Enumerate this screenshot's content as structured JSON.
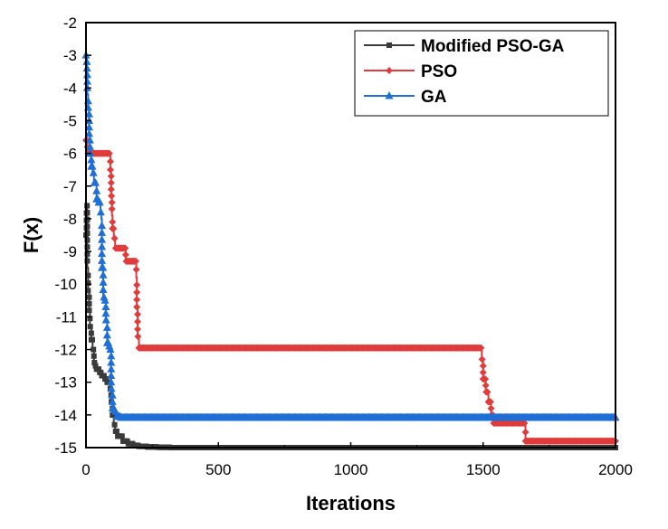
{
  "chart_data": {
    "type": "line",
    "xlabel": "Iterations",
    "ylabel": "F(x)",
    "xlim": [
      0,
      2000
    ],
    "ylim": [
      -15,
      -2
    ],
    "xticks": [
      "0",
      "500",
      "1000",
      "1500",
      "2000"
    ],
    "yticks": [
      "-2",
      "-3",
      "-4",
      "-5",
      "-6",
      "-7",
      "-8",
      "-9",
      "-10",
      "-11",
      "-12",
      "-13",
      "-14",
      "-15"
    ],
    "legend_position": "top-right",
    "series": [
      {
        "name": "Modified PSO-GA",
        "color": "#3a3a3a",
        "marker": "square",
        "x": [
          0,
          2,
          5,
          8,
          12,
          15,
          20,
          25,
          30,
          35,
          40,
          50,
          60,
          70,
          80,
          90,
          95,
          100,
          105,
          110,
          120,
          140,
          160,
          180,
          200,
          230,
          270,
          320,
          400,
          600,
          1000,
          1500,
          2000
        ],
        "y": [
          -8.5,
          -7.6,
          -9.5,
          -10.2,
          -10.8,
          -11.3,
          -11.7,
          -12.0,
          -12.4,
          -12.5,
          -12.6,
          -12.7,
          -12.8,
          -12.9,
          -13.0,
          -13.2,
          -13.6,
          -14.0,
          -14.3,
          -14.5,
          -14.65,
          -14.8,
          -14.88,
          -14.93,
          -14.96,
          -14.98,
          -14.99,
          -15.0,
          -15.0,
          -15.0,
          -15.0,
          -15.0,
          -15.0
        ]
      },
      {
        "name": "PSO",
        "color": "#e03c3c",
        "marker": "diamond",
        "x": [
          0,
          5,
          90,
          92,
          95,
          98,
          100,
          105,
          110,
          140,
          150,
          180,
          190,
          192,
          195,
          200,
          300,
          500,
          800,
          1000,
          1200,
          1400,
          1490,
          1495,
          1500,
          1510,
          1520,
          1530,
          1540,
          1600,
          1655,
          1660,
          1700,
          1800,
          2000
        ],
        "y": [
          -5.6,
          -6.0,
          -6.0,
          -6.5,
          -7.3,
          -7.9,
          -8.3,
          -8.6,
          -8.9,
          -8.9,
          -9.3,
          -9.3,
          -9.8,
          -10.7,
          -11.6,
          -11.95,
          -11.95,
          -11.95,
          -11.95,
          -11.95,
          -11.95,
          -11.95,
          -11.95,
          -12.3,
          -12.9,
          -13.3,
          -13.6,
          -14.0,
          -14.25,
          -14.25,
          -14.25,
          -14.8,
          -14.8,
          -14.8,
          -14.8
        ]
      },
      {
        "name": "GA",
        "color": "#1f6fd6",
        "marker": "triangle",
        "x": [
          0,
          3,
          5,
          8,
          12,
          15,
          20,
          25,
          30,
          40,
          45,
          55,
          58,
          60,
          65,
          70,
          75,
          80,
          85,
          90,
          95,
          100,
          105,
          110,
          115,
          130,
          200,
          500,
          1000,
          1500,
          2000
        ],
        "y": [
          -3.0,
          -3.4,
          -4.2,
          -4.6,
          -5.4,
          -6.0,
          -6.4,
          -6.6,
          -6.9,
          -7.4,
          -7.5,
          -7.8,
          -8.0,
          -9.5,
          -10.4,
          -10.5,
          -11.1,
          -11.8,
          -11.9,
          -12.0,
          -13.2,
          -13.8,
          -13.85,
          -13.9,
          -14.05,
          -14.08,
          -14.08,
          -14.08,
          -14.08,
          -14.08,
          -14.08
        ]
      }
    ]
  }
}
